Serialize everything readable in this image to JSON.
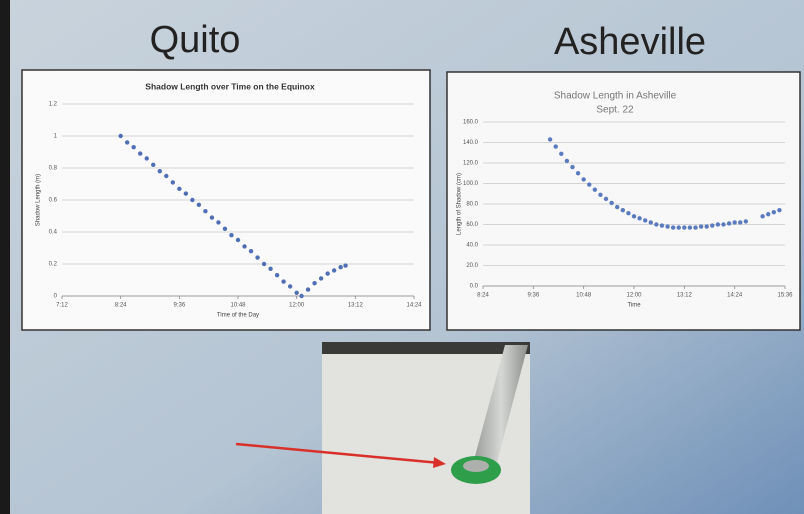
{
  "headings": [
    "Quito",
    "Asheville"
  ],
  "chart_data": [
    {
      "type": "scatter",
      "title": "Shadow Length over Time on the Equinox",
      "x_label": "Time of the Day",
      "y_label": "Shadow Length (m)",
      "color": "#4f6fb5",
      "grid": true,
      "xlim": [
        432,
        864
      ],
      "xticks": [
        {
          "value": 432,
          "label": "7:12"
        },
        {
          "value": 504,
          "label": "8:24"
        },
        {
          "value": 576,
          "label": "9:36"
        },
        {
          "value": 648,
          "label": "10:48"
        },
        {
          "value": 720,
          "label": "12:00"
        },
        {
          "value": 792,
          "label": "13:12"
        },
        {
          "value": 864,
          "label": "14:24"
        }
      ],
      "ylim": [
        0,
        1.2
      ],
      "yticks": [
        0,
        0.2,
        0.4,
        0.6,
        0.8,
        1,
        1.2
      ],
      "x": [
        504,
        512,
        520,
        528,
        536,
        544,
        552,
        560,
        568,
        576,
        584,
        592,
        600,
        608,
        616,
        624,
        632,
        640,
        648,
        656,
        664,
        672,
        680,
        688,
        696,
        704,
        712,
        720,
        726,
        734,
        742,
        750,
        758,
        766,
        774,
        780
      ],
      "values": [
        1.0,
        0.96,
        0.93,
        0.89,
        0.86,
        0.82,
        0.78,
        0.75,
        0.71,
        0.67,
        0.64,
        0.6,
        0.57,
        0.53,
        0.49,
        0.46,
        0.42,
        0.38,
        0.35,
        0.31,
        0.28,
        0.24,
        0.2,
        0.17,
        0.13,
        0.09,
        0.06,
        0.02,
        0.0,
        0.04,
        0.08,
        0.11,
        0.14,
        0.16,
        0.18,
        0.19
      ]
    },
    {
      "type": "scatter",
      "title": "Shadow Length in Asheville",
      "subtitle": "Sept. 22",
      "x_label": "Time",
      "y_label": "Length of Shadow (cm)",
      "color": "#5b7bbf",
      "grid": true,
      "xlim": [
        504,
        936
      ],
      "xticks": [
        {
          "value": 504,
          "label": "8:24"
        },
        {
          "value": 576,
          "label": "9:36"
        },
        {
          "value": 648,
          "label": "10:48"
        },
        {
          "value": 720,
          "label": "12:00"
        },
        {
          "value": 792,
          "label": "13:12"
        },
        {
          "value": 864,
          "label": "14:24"
        },
        {
          "value": 936,
          "label": "15:36"
        }
      ],
      "ylim": [
        0,
        160
      ],
      "yticks": [
        {
          "value": 0,
          "label": "0.0"
        },
        {
          "value": 20,
          "label": "20.0"
        },
        {
          "value": 40,
          "label": "40.0"
        },
        {
          "value": 60,
          "label": "60.0"
        },
        {
          "value": 80,
          "label": "80.0"
        },
        {
          "value": 100,
          "label": "100.0"
        },
        {
          "value": 120,
          "label": "120.0"
        },
        {
          "value": 140,
          "label": "140.0"
        },
        {
          "value": 160,
          "label": "160.0"
        }
      ],
      "x": [
        600,
        608,
        616,
        624,
        632,
        640,
        648,
        656,
        664,
        672,
        680,
        688,
        696,
        704,
        712,
        720,
        728,
        736,
        744,
        752,
        760,
        768,
        776,
        784,
        792,
        800,
        808,
        816,
        824,
        832,
        840,
        848,
        856,
        864,
        872,
        880,
        904,
        912,
        920,
        928
      ],
      "values": [
        143,
        136,
        129,
        122,
        116,
        110,
        104,
        99,
        94,
        89,
        85,
        81,
        77,
        74,
        71,
        68,
        66,
        64,
        62,
        60,
        59,
        58,
        57,
        57,
        57,
        57,
        57,
        58,
        58,
        59,
        60,
        60,
        61,
        62,
        62,
        63,
        68,
        70,
        72,
        74
      ]
    }
  ]
}
